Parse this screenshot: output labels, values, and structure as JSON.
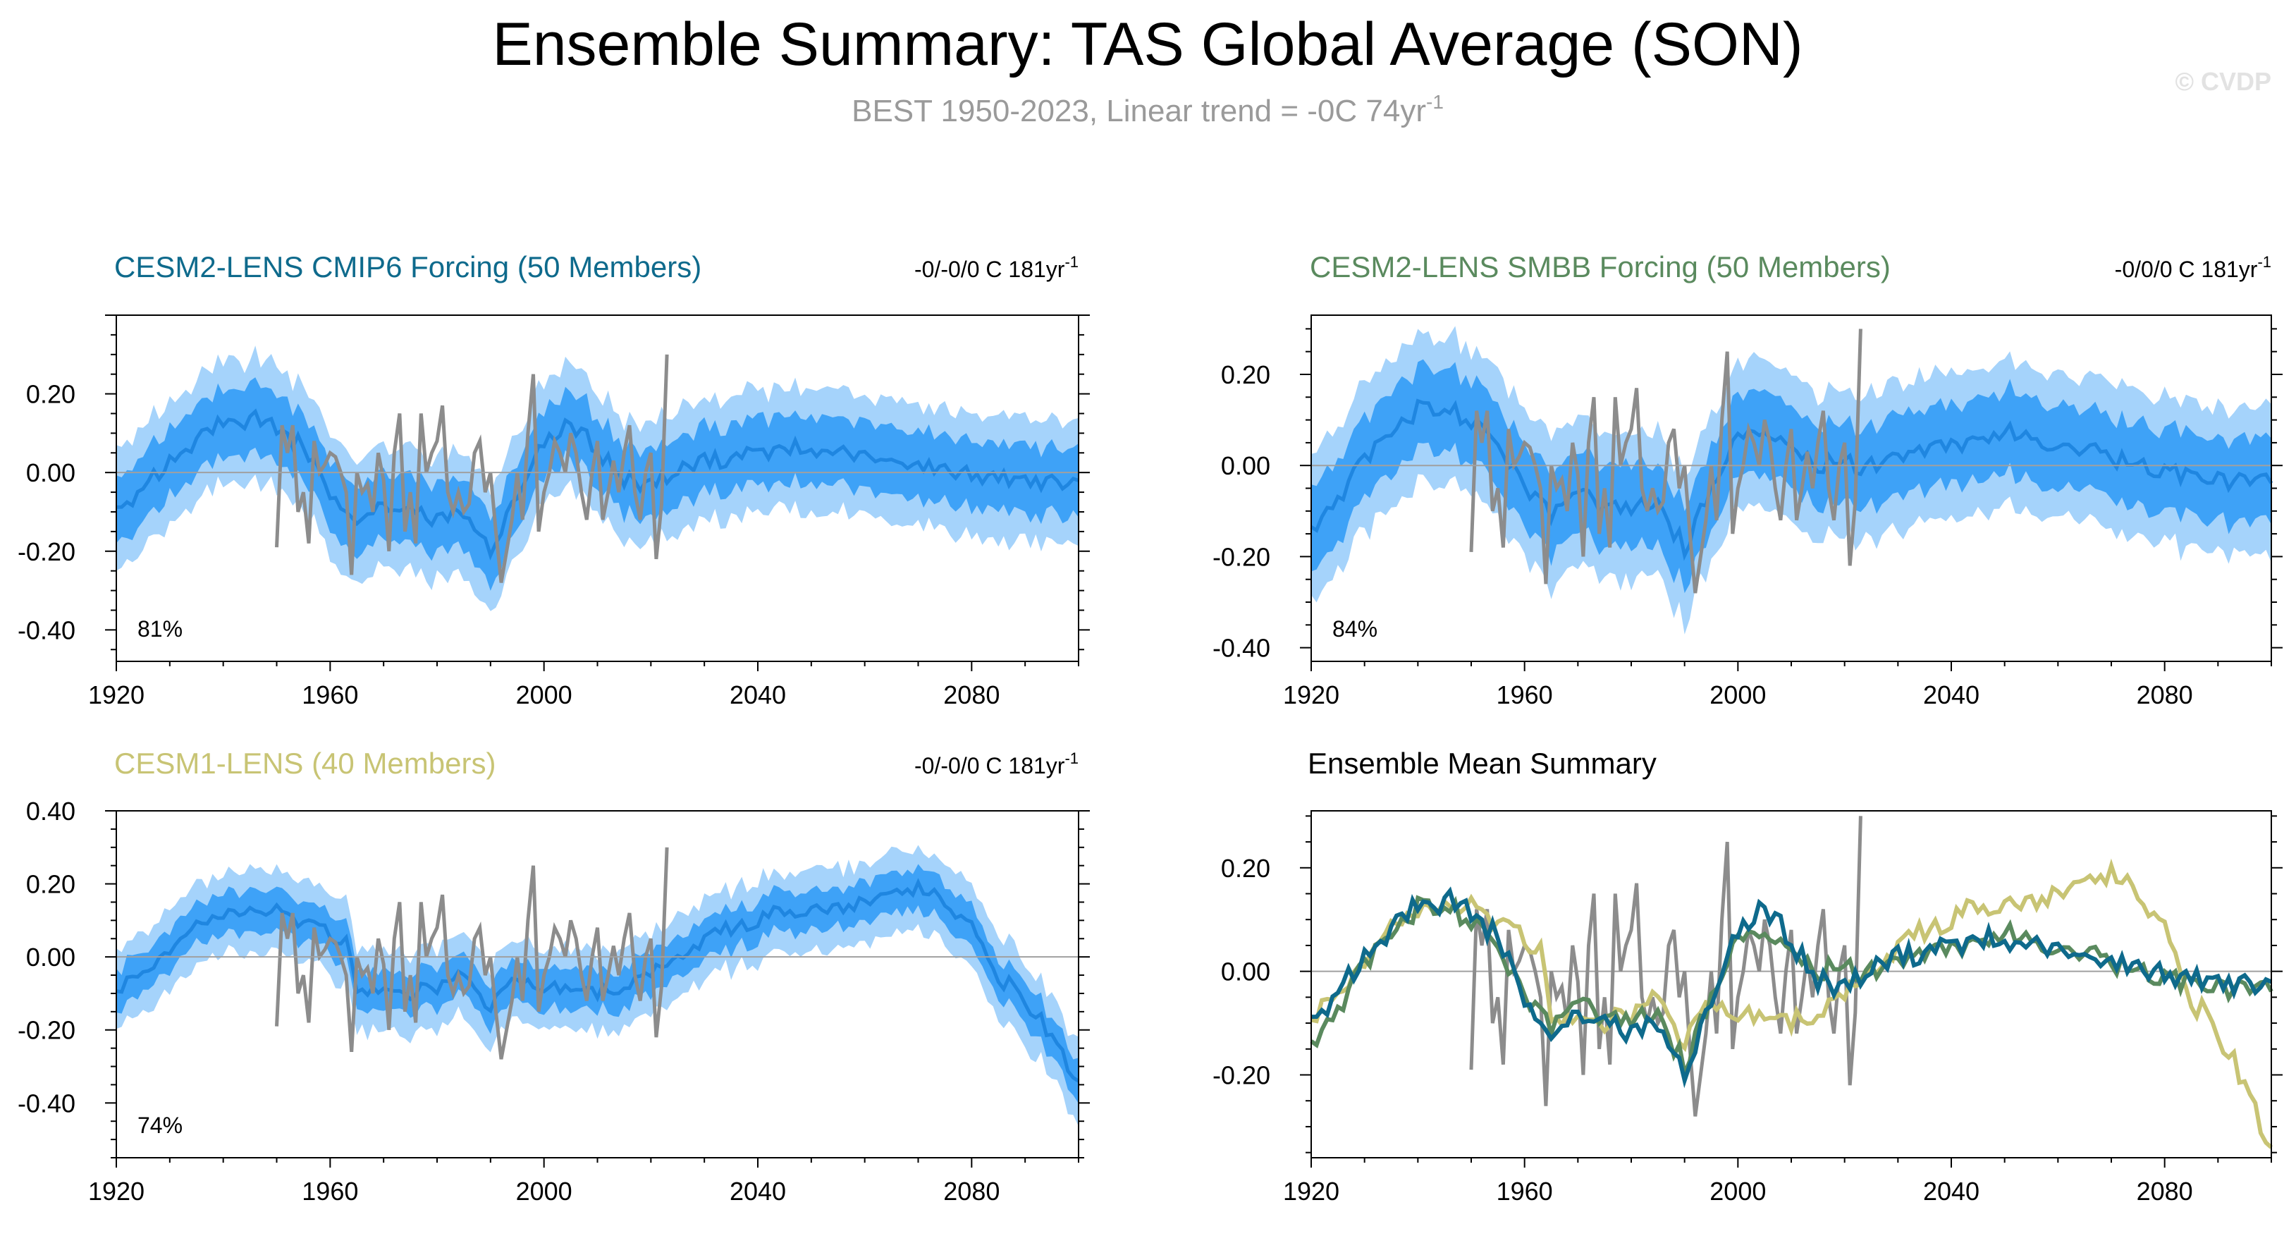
{
  "title": "Ensemble Summary: TAS Global Average (SON)",
  "subtitle_main": "BEST 1950-2023, Linear trend = -0C 74yr",
  "subtitle_sup": "-1",
  "watermark": "© CVDP",
  "colors": {
    "cmip6": "#0e6a8c",
    "smbb": "#5a8a5e",
    "lens1": "#c8c474",
    "obs": "#8c8c8c",
    "band_outer": "#a5d3fb",
    "band_inner": "#3ea2f7",
    "band_mean": "#1f86e0",
    "summary_black": "#000000"
  },
  "chart_data": [
    {
      "id": "cmip6",
      "type": "line",
      "title": "CESM2-LENS CMIP6 Forcing (50 Members)",
      "trend_label": "-0/-0/0 C 181yr",
      "trend_sup": "-1",
      "percent_label": "81%",
      "xlim": [
        1920,
        2100
      ],
      "ylim": [
        -0.48,
        0.4
      ],
      "yticks": [
        -0.4,
        -0.2,
        0.0,
        0.2
      ],
      "ytick_labels": [
        "-0.40",
        "-0.20",
        "0.00",
        "0.20"
      ],
      "xticks": [
        1920,
        1960,
        2000,
        2040,
        2080
      ],
      "ensemble_mean_knots": [
        [
          1920,
          -0.1
        ],
        [
          1925,
          -0.05
        ],
        [
          1930,
          0.03
        ],
        [
          1935,
          0.08
        ],
        [
          1940,
          0.12
        ],
        [
          1945,
          0.14
        ],
        [
          1950,
          0.12
        ],
        [
          1955,
          0.06
        ],
        [
          1960,
          -0.06
        ],
        [
          1965,
          -0.12
        ],
        [
          1970,
          -0.08
        ],
        [
          1975,
          -0.1
        ],
        [
          1980,
          -0.12
        ],
        [
          1985,
          -0.1
        ],
        [
          1990,
          -0.2
        ],
        [
          1995,
          -0.05
        ],
        [
          2000,
          0.08
        ],
        [
          2005,
          0.12
        ],
        [
          2010,
          0.06
        ],
        [
          2015,
          -0.02
        ],
        [
          2020,
          -0.03
        ],
        [
          2025,
          0.0
        ],
        [
          2030,
          0.03
        ],
        [
          2040,
          0.05
        ],
        [
          2050,
          0.06
        ],
        [
          2060,
          0.04
        ],
        [
          2070,
          0.02
        ],
        [
          2080,
          0.0
        ],
        [
          2090,
          -0.02
        ],
        [
          2100,
          -0.03
        ]
      ],
      "spread_inner": 0.085,
      "spread_outer": 0.155
    },
    {
      "id": "smbb",
      "type": "line",
      "title": "CESM2-LENS SMBB Forcing (50 Members)",
      "trend_label": "-0/0/0 C 181yr",
      "trend_sup": "-1",
      "percent_label": "84%",
      "xlim": [
        1920,
        2100
      ],
      "ylim": [
        -0.43,
        0.33
      ],
      "yticks": [
        -0.4,
        -0.2,
        0.0,
        0.2
      ],
      "ytick_labels": [
        "-0.40",
        "-0.20",
        "0.00",
        "0.20"
      ],
      "xticks": [
        1920,
        1960,
        2000,
        2040,
        2080
      ],
      "ensemble_mean_knots": [
        [
          1920,
          -0.15
        ],
        [
          1925,
          -0.07
        ],
        [
          1930,
          0.02
        ],
        [
          1935,
          0.08
        ],
        [
          1940,
          0.12
        ],
        [
          1945,
          0.13
        ],
        [
          1950,
          0.1
        ],
        [
          1955,
          0.05
        ],
        [
          1960,
          -0.05
        ],
        [
          1965,
          -0.1
        ],
        [
          1970,
          -0.06
        ],
        [
          1975,
          -0.08
        ],
        [
          1980,
          -0.1
        ],
        [
          1985,
          -0.08
        ],
        [
          1990,
          -0.18
        ],
        [
          1995,
          -0.04
        ],
        [
          2000,
          0.06
        ],
        [
          2005,
          0.08
        ],
        [
          2010,
          0.04
        ],
        [
          2015,
          0.0
        ],
        [
          2020,
          0.0
        ],
        [
          2025,
          0.0
        ],
        [
          2030,
          0.02
        ],
        [
          2040,
          0.05
        ],
        [
          2050,
          0.07
        ],
        [
          2060,
          0.05
        ],
        [
          2070,
          0.02
        ],
        [
          2080,
          -0.01
        ],
        [
          2090,
          -0.03
        ],
        [
          2100,
          -0.03
        ]
      ],
      "spread_inner": 0.09,
      "spread_outer": 0.16
    },
    {
      "id": "lens1",
      "type": "line",
      "title": "CESM1-LENS (40 Members)",
      "trend_label": "-0/-0/0 C 181yr",
      "trend_sup": "-1",
      "percent_label": "74%",
      "xlim": [
        1920,
        2100
      ],
      "ylim": [
        -0.55,
        0.4
      ],
      "yticks": [
        -0.4,
        -0.2,
        0.0,
        0.2,
        0.4
      ],
      "ytick_labels": [
        "-0.40",
        "-0.20",
        "0.00",
        "0.20",
        "0.40"
      ],
      "xticks": [
        1920,
        1960,
        2000,
        2040,
        2080
      ],
      "ensemble_mean_knots": [
        [
          1920,
          -0.1
        ],
        [
          1925,
          -0.04
        ],
        [
          1930,
          0.02
        ],
        [
          1935,
          0.08
        ],
        [
          1940,
          0.12
        ],
        [
          1945,
          0.14
        ],
        [
          1950,
          0.13
        ],
        [
          1955,
          0.1
        ],
        [
          1960,
          0.06
        ],
        [
          1963,
          0.05
        ],
        [
          1965,
          -0.1
        ],
        [
          1970,
          -0.08
        ],
        [
          1975,
          -0.09
        ],
        [
          1980,
          -0.08
        ],
        [
          1985,
          -0.05
        ],
        [
          1990,
          -0.15
        ],
        [
          1995,
          -0.05
        ],
        [
          2000,
          -0.08
        ],
        [
          2010,
          -0.1
        ],
        [
          2015,
          -0.08
        ],
        [
          2020,
          -0.05
        ],
        [
          2025,
          0.0
        ],
        [
          2030,
          0.04
        ],
        [
          2035,
          0.08
        ],
        [
          2040,
          0.1
        ],
        [
          2045,
          0.12
        ],
        [
          2050,
          0.13
        ],
        [
          2055,
          0.14
        ],
        [
          2060,
          0.15
        ],
        [
          2065,
          0.17
        ],
        [
          2070,
          0.18
        ],
        [
          2075,
          0.15
        ],
        [
          2080,
          0.08
        ],
        [
          2085,
          -0.05
        ],
        [
          2090,
          -0.12
        ],
        [
          2095,
          -0.22
        ],
        [
          2100,
          -0.35
        ]
      ],
      "spread_inner": 0.055,
      "spread_outer": 0.11
    },
    {
      "id": "summary",
      "type": "line",
      "title": "Ensemble Mean Summary",
      "xlim": [
        1920,
        2100
      ],
      "ylim": [
        -0.36,
        0.31
      ],
      "yticks": [
        -0.2,
        0.0,
        0.2
      ],
      "ytick_labels": [
        "-0.20",
        "0.00",
        "0.20"
      ],
      "xticks": [
        1920,
        1960,
        2000,
        2040,
        2080
      ]
    }
  ],
  "obs_series": {
    "name": "BEST",
    "years": [
      1950,
      1951,
      1952,
      1953,
      1954,
      1955,
      1956,
      1957,
      1958,
      1959,
      1960,
      1961,
      1962,
      1963,
      1964,
      1965,
      1966,
      1967,
      1968,
      1969,
      1970,
      1971,
      1972,
      1973,
      1974,
      1975,
      1976,
      1977,
      1978,
      1979,
      1980,
      1981,
      1982,
      1983,
      1984,
      1985,
      1986,
      1987,
      1988,
      1989,
      1990,
      1991,
      1992,
      1993,
      1994,
      1995,
      1996,
      1997,
      1998,
      1999,
      2000,
      2001,
      2002,
      2003,
      2004,
      2005,
      2006,
      2007,
      2008,
      2009,
      2010,
      2011,
      2012,
      2013,
      2014,
      2015,
      2016,
      2017,
      2018,
      2019,
      2020,
      2021,
      2022,
      2023
    ],
    "values": [
      -0.19,
      0.12,
      0.05,
      0.12,
      -0.1,
      -0.05,
      -0.18,
      0.08,
      0.0,
      0.02,
      0.05,
      0.04,
      0.0,
      -0.05,
      -0.26,
      0.0,
      -0.05,
      -0.03,
      -0.1,
      0.05,
      -0.02,
      -0.2,
      0.05,
      0.15,
      -0.15,
      -0.05,
      -0.18,
      0.15,
      0.0,
      0.05,
      0.08,
      0.17,
      -0.05,
      -0.1,
      -0.05,
      -0.1,
      -0.08,
      0.05,
      0.08,
      -0.05,
      0.0,
      -0.15,
      -0.28,
      -0.2,
      -0.12,
      0.0,
      -0.12,
      0.1,
      0.25,
      -0.15,
      -0.05,
      0.0,
      0.08,
      0.05,
      0.0,
      0.1,
      0.05,
      -0.05,
      -0.12,
      0.0,
      0.08,
      -0.12,
      -0.05,
      0.03,
      -0.05,
      0.05,
      0.12,
      -0.05,
      -0.12,
      0.0,
      0.05,
      -0.22,
      -0.08,
      0.3
    ]
  }
}
